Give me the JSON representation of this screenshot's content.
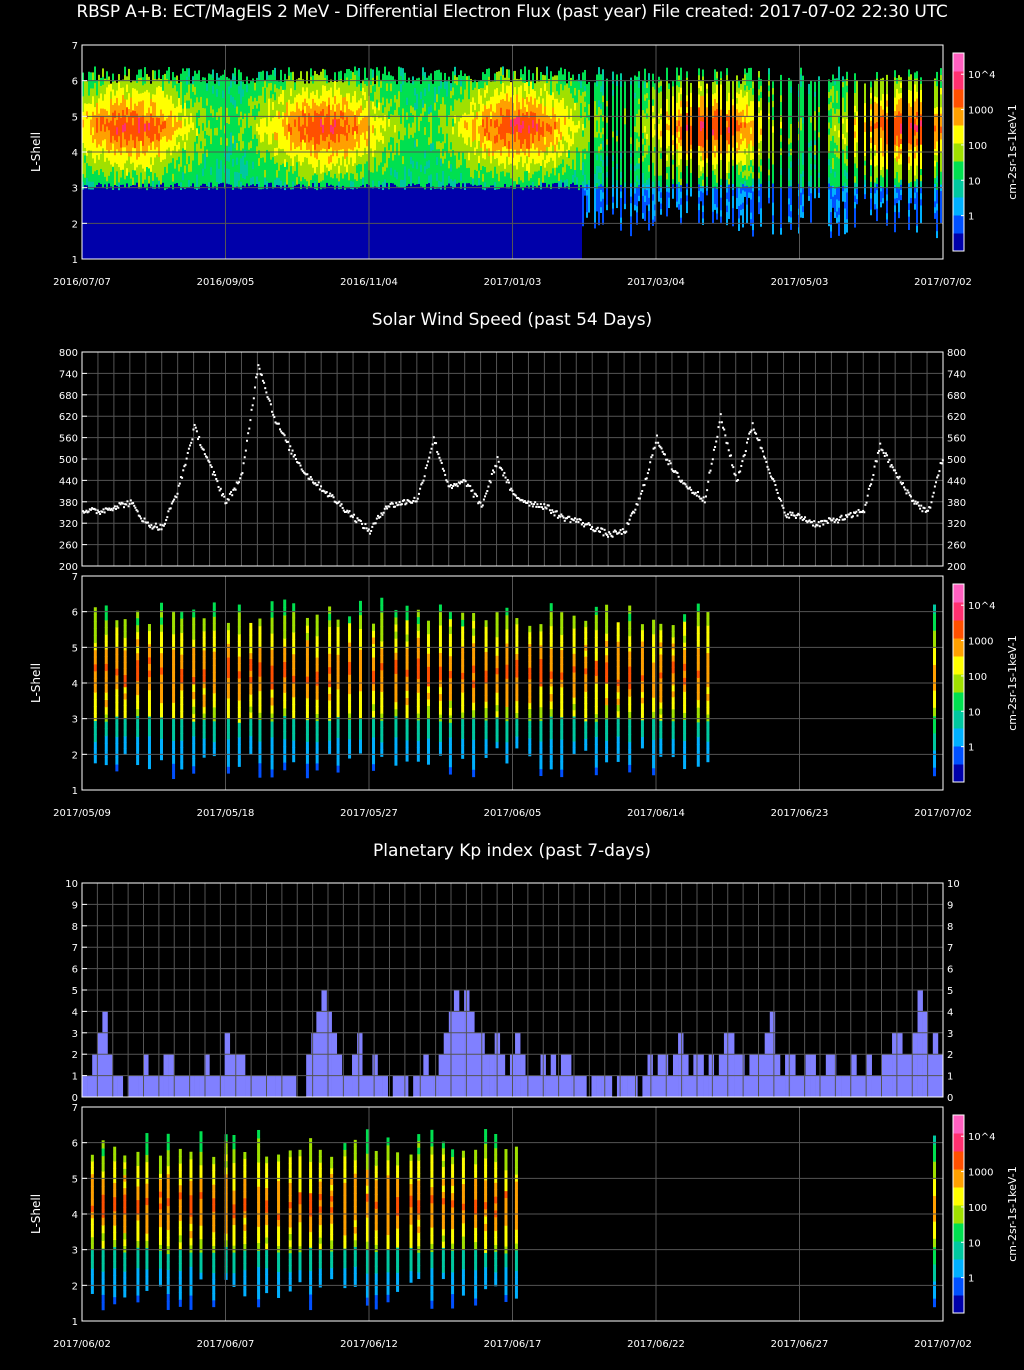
{
  "titles": {
    "main": "RBSP A+B: ECT/MagEIS 2 MeV - Differential Electron Flux (past year) File created: 2017-07-02 22:30 UTC",
    "solar_wind": "Solar Wind Speed (past 54 Days)",
    "kp": "Planetary Kp index (past 7-days)"
  },
  "colors": {
    "background": "#000000",
    "kp_bar": "#8080ff",
    "grid": "#555555",
    "axis": "#ffffff",
    "colorscale": [
      "#0000aa",
      "#0050ff",
      "#00b0ff",
      "#00c8a0",
      "#00e050",
      "#a0e000",
      "#ffff00",
      "#ffa000",
      "#ff5000",
      "#ff3070",
      "#ff60c0"
    ]
  },
  "chart_data": [
    {
      "type": "heatmap",
      "id": "flux-year",
      "ylabel": "L-Shell",
      "ylim": [
        1,
        7
      ],
      "y_ticks": [
        "1",
        "2",
        "3",
        "4",
        "5",
        "6",
        "7"
      ],
      "x_ticks": [
        "2016/07/07",
        "2016/09/05",
        "2016/11/04",
        "2017/01/03",
        "2017/03/04",
        "2017/05/03",
        "2017/07/02"
      ],
      "colorbar_label": "cm-2sr-1s-1keV-1",
      "colorbar_ticks": [
        "1",
        "10",
        "100",
        "1000",
        "10^4"
      ],
      "grid": true
    },
    {
      "type": "scatter",
      "id": "solar-wind",
      "ylim": [
        200,
        800
      ],
      "y_ticks": [
        "200",
        "260",
        "320",
        "380",
        "440",
        "500",
        "560",
        "620",
        "680",
        "740",
        "800"
      ],
      "grid": true,
      "x_days": [
        0,
        1,
        2,
        3,
        4,
        5,
        6,
        7,
        8,
        9,
        10,
        11,
        12,
        13,
        14,
        15,
        16,
        17,
        18,
        19,
        20,
        21,
        22,
        23,
        24,
        25,
        26,
        27,
        28,
        29,
        30,
        31,
        32,
        33,
        34,
        35,
        36,
        37,
        38,
        39,
        40,
        41,
        42,
        43,
        44,
        45,
        46,
        47,
        48,
        49,
        50,
        51,
        52,
        53,
        54
      ],
      "values": [
        360,
        355,
        370,
        380,
        320,
        310,
        420,
        590,
        480,
        380,
        460,
        770,
        620,
        530,
        460,
        420,
        380,
        340,
        300,
        370,
        380,
        390,
        560,
        420,
        440,
        370,
        500,
        400,
        380,
        370,
        340,
        330,
        310,
        290,
        300,
        400,
        560,
        470,
        420,
        390,
        620,
        440,
        600,
        480,
        350,
        340,
        320,
        330,
        340,
        360,
        540,
        460,
        390,
        350,
        520
      ]
    },
    {
      "type": "heatmap",
      "id": "flux-54day",
      "ylabel": "L-Shell",
      "ylim": [
        1,
        7
      ],
      "y_ticks": [
        "1",
        "2",
        "3",
        "4",
        "5",
        "6",
        "7"
      ],
      "x_ticks": [
        "2017/05/09",
        "2017/05/18",
        "2017/05/27",
        "2017/06/05",
        "2017/06/14",
        "2017/06/23",
        "2017/07/02"
      ],
      "colorbar_label": "cm-2sr-1s-1keV-1",
      "colorbar_ticks": [
        "1",
        "10",
        "100",
        "1000",
        "10^4"
      ],
      "grid": true
    },
    {
      "type": "bar",
      "id": "kp",
      "ylim": [
        0,
        10
      ],
      "y_ticks": [
        "0",
        "1",
        "2",
        "3",
        "4",
        "5",
        "6",
        "7",
        "8",
        "9",
        "10"
      ],
      "grid": true,
      "values": [
        1,
        1,
        2,
        3,
        4,
        2,
        1,
        1,
        0,
        1,
        1,
        1,
        2,
        1,
        1,
        1,
        2,
        2,
        1,
        1,
        1,
        1,
        1,
        1,
        2,
        1,
        1,
        1,
        3,
        2,
        2,
        2,
        1,
        1,
        1,
        1,
        1,
        1,
        1,
        1,
        1,
        1,
        0,
        0,
        2,
        3,
        4,
        5,
        4,
        3,
        2,
        1,
        1,
        2,
        3,
        1,
        1,
        2,
        1,
        1,
        0,
        1,
        1,
        1,
        0,
        1,
        1,
        2,
        1,
        1,
        2,
        3,
        4,
        5,
        4,
        5,
        4,
        3,
        3,
        2,
        2,
        3,
        2,
        1,
        2,
        3,
        2,
        1,
        1,
        1,
        2,
        1,
        2,
        1,
        2,
        2,
        1,
        1,
        1,
        0,
        1,
        1,
        1,
        1,
        0,
        1,
        1,
        1,
        1,
        0,
        1,
        2,
        1,
        2,
        2,
        1,
        2,
        3,
        2,
        1,
        2,
        2,
        1,
        2,
        1,
        2,
        3,
        3,
        2,
        2,
        1,
        2,
        2,
        2,
        3,
        4,
        2,
        1,
        2,
        2,
        1,
        1,
        2,
        2,
        1,
        1,
        2,
        2,
        1,
        1,
        1,
        2,
        1,
        1,
        2,
        1,
        1,
        2,
        2,
        3,
        3,
        2,
        2,
        3,
        5,
        4,
        2,
        3,
        2
      ]
    },
    {
      "type": "heatmap",
      "id": "flux-week",
      "ylabel": "L-Shell",
      "ylim": [
        1,
        7
      ],
      "y_ticks": [
        "1",
        "2",
        "3",
        "4",
        "5",
        "6",
        "7"
      ],
      "x_ticks": [
        "2017/06/02",
        "2017/06/07",
        "2017/06/12",
        "2017/06/17",
        "2017/06/22",
        "2017/06/27",
        "2017/07/02"
      ],
      "colorbar_label": "cm-2sr-1s-1keV-1",
      "colorbar_ticks": [
        "1",
        "10",
        "100",
        "1000",
        "10^4"
      ],
      "grid": true
    }
  ]
}
